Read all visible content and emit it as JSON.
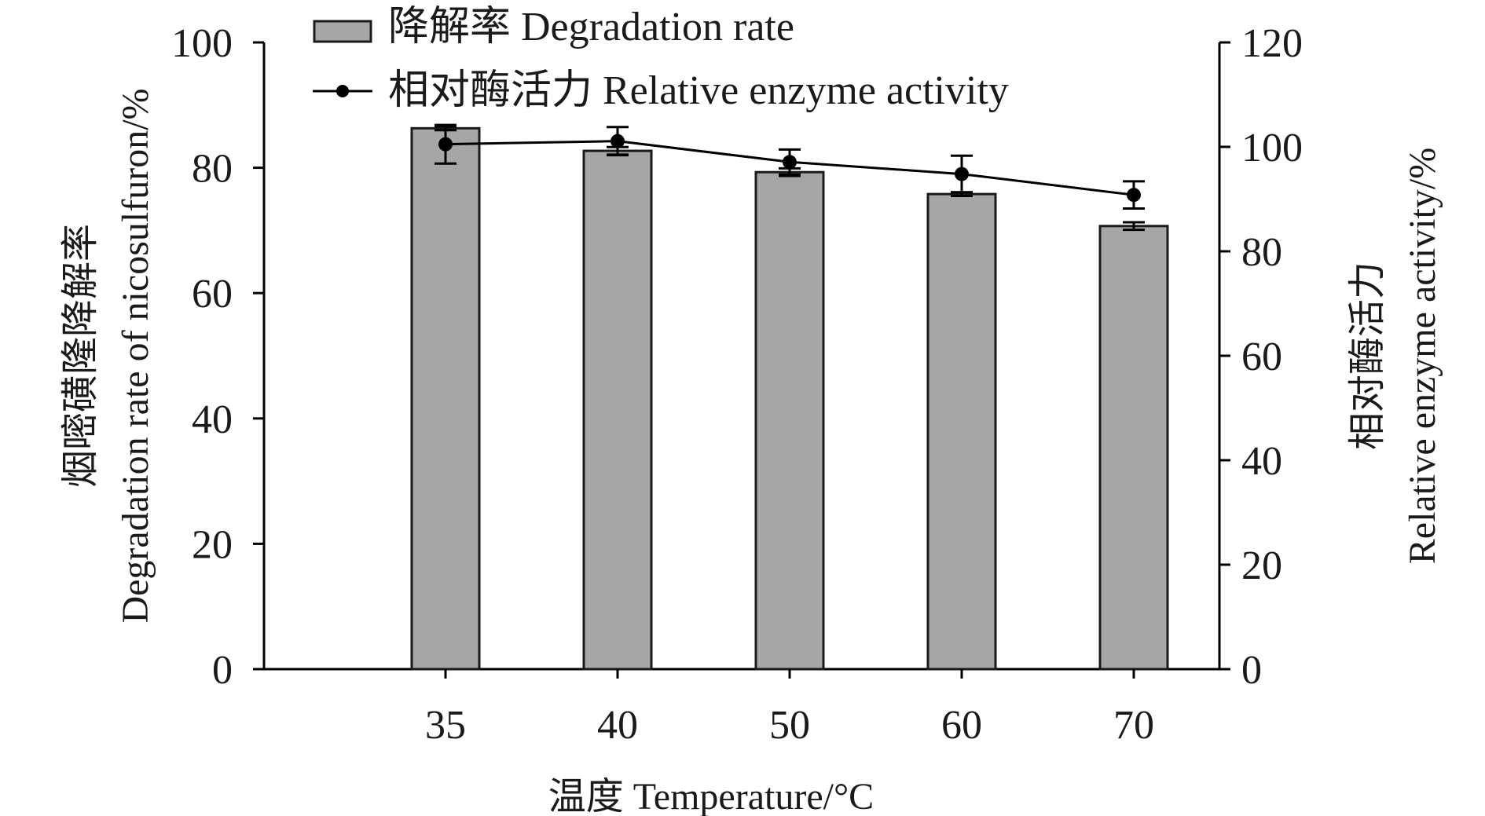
{
  "chart_data": {
    "type": "bar",
    "categories": [
      "35",
      "40",
      "50",
      "60",
      "70"
    ],
    "series": [
      {
        "name": "降解率 Degradation rate",
        "kind": "bar",
        "axis": "left",
        "color": "#a6a6a6",
        "values": [
          86.3,
          82.7,
          79.3,
          75.8,
          70.7
        ],
        "errors": [
          0.3,
          0.6,
          0.6,
          0.3,
          0.6
        ]
      },
      {
        "name": "相对酶活力 Relative enzyme activity",
        "kind": "line",
        "axis": "right",
        "color": "#000000",
        "values": [
          100.5,
          101.1,
          97.1,
          94.8,
          90.8
        ],
        "errors": [
          3.7,
          2.7,
          2.4,
          3.5,
          2.6
        ]
      }
    ],
    "xlabel": "温度 Temperature/°C",
    "ylabel_left": [
      "烟嘧磺隆降解率",
      "Degradation rate of nicosulfuron/%"
    ],
    "ylabel_right": [
      "相对酶活力",
      "Relative enzyme activity/%"
    ],
    "ylim_left": [
      0,
      100
    ],
    "yticks_left": [
      0,
      20,
      40,
      60,
      80,
      100
    ],
    "ylim_right": [
      0,
      120
    ],
    "yticks_right": [
      0,
      20,
      40,
      60,
      80,
      100,
      120
    ],
    "grid": false,
    "legend_position": "top-left"
  }
}
